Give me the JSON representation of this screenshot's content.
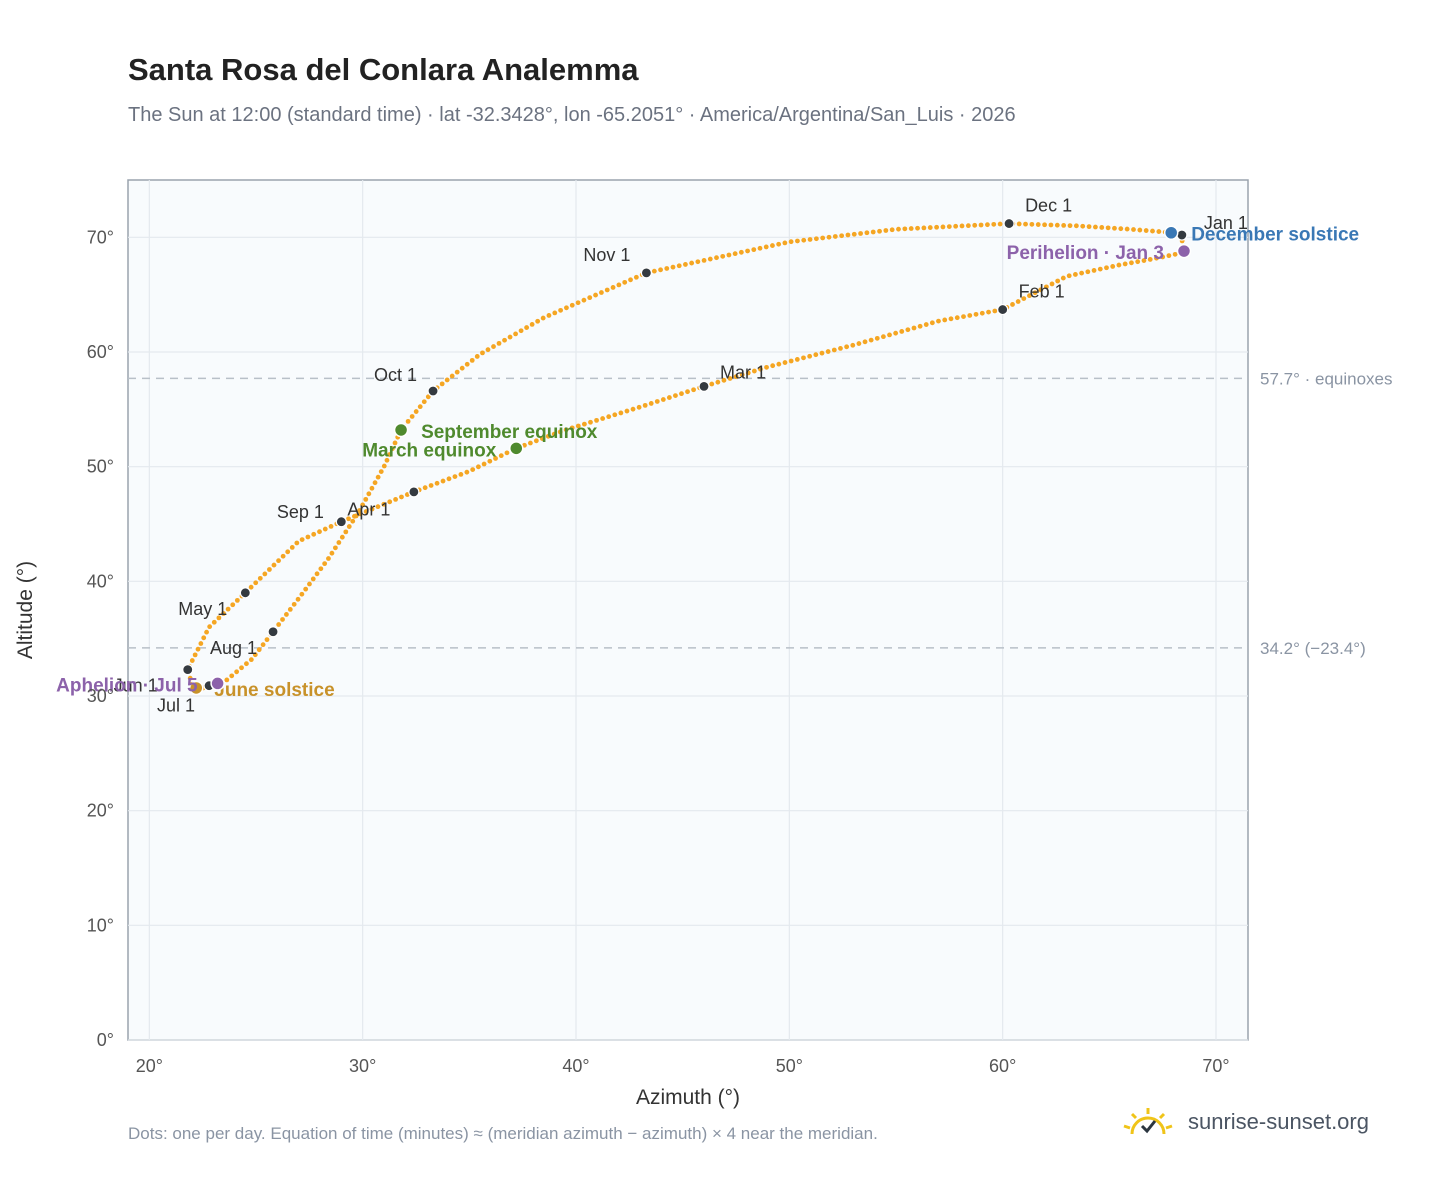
{
  "page": {
    "title": "Santa Rosa del Conlara Analemma",
    "subtitle": "The Sun at 12:00 (standard time) · lat -32.3428°, lon -65.2051° · America/Argentina/San_Luis · 2026",
    "footnote": "Dots: one per day. Equation of time (minutes) ≈ (meridian azimuth − azimuth) × 4 near the meridian.",
    "brand": "sunrise-sunset.org"
  },
  "chart_data": {
    "type": "scatter",
    "title": "Santa Rosa del Conlara Analemma",
    "xlabel": "Azimuth (°)",
    "ylabel": "Altitude (°)",
    "xlim": [
      19,
      71.5
    ],
    "ylim": [
      0,
      75
    ],
    "xticks": [
      20,
      30,
      40,
      50,
      60,
      70
    ],
    "yticks": [
      0,
      10,
      20,
      30,
      40,
      50,
      60,
      70
    ],
    "x_tick_labels": [
      "20°",
      "30°",
      "40°",
      "50°",
      "60°",
      "70°"
    ],
    "y_tick_labels": [
      "0°",
      "10°",
      "20°",
      "30°",
      "40°",
      "50°",
      "60°",
      "70°"
    ],
    "grid": true,
    "curve_color": "#f5a623",
    "month_marker_color": "#343a40",
    "reference_lines": [
      {
        "y": 57.7,
        "label": "57.7° · equinoxes"
      },
      {
        "y": 34.2,
        "label": "34.2° (−23.4°)"
      }
    ],
    "analemma_points": [
      [
        68.5,
        70.2
      ],
      [
        68.4,
        69.8
      ],
      [
        68.5,
        69.0
      ],
      [
        68.3,
        68.6
      ],
      [
        67.0,
        68.1
      ],
      [
        65.5,
        67.6
      ],
      [
        63.0,
        66.6
      ],
      [
        60.0,
        63.7
      ],
      [
        57.0,
        62.7
      ],
      [
        53.0,
        60.6
      ],
      [
        49.0,
        58.7
      ],
      [
        46.0,
        57.0
      ],
      [
        43.0,
        55.2
      ],
      [
        39.5,
        53.2
      ],
      [
        37.2,
        51.6
      ],
      [
        35.0,
        49.6
      ],
      [
        32.4,
        47.8
      ],
      [
        29.0,
        45.2
      ],
      [
        27.0,
        43.5
      ],
      [
        24.5,
        39.0
      ],
      [
        22.8,
        36.0
      ],
      [
        21.8,
        32.3
      ],
      [
        22.0,
        31.0
      ],
      [
        22.2,
        30.7
      ],
      [
        22.8,
        30.7
      ],
      [
        23.5,
        31.2
      ],
      [
        24.8,
        33.2
      ],
      [
        25.8,
        35.6
      ],
      [
        27.0,
        38.5
      ],
      [
        28.4,
        42.0
      ],
      [
        29.8,
        46.0
      ],
      [
        31.0,
        50.0
      ],
      [
        31.8,
        53.2
      ],
      [
        33.3,
        56.6
      ],
      [
        35.5,
        59.8
      ],
      [
        38.5,
        63.0
      ],
      [
        43.3,
        66.9
      ],
      [
        50.0,
        69.6
      ],
      [
        55.0,
        70.7
      ],
      [
        60.3,
        71.2
      ],
      [
        63.5,
        71.0
      ],
      [
        66.0,
        70.7
      ],
      [
        68.0,
        70.4
      ],
      [
        68.5,
        70.2
      ]
    ],
    "month_markers": [
      {
        "label": "Jan 1",
        "x": 68.4,
        "y": 70.2
      },
      {
        "label": "Feb 1",
        "x": 60.0,
        "y": 63.7
      },
      {
        "label": "Mar 1",
        "x": 46.0,
        "y": 57.0
      },
      {
        "label": "Apr 1",
        "x": 29.0,
        "y": 45.2
      },
      {
        "label": "May 1",
        "x": 24.5,
        "y": 39.0
      },
      {
        "label": "Jun 1",
        "x": 21.8,
        "y": 32.3
      },
      {
        "label": "Jul 1",
        "x": 22.8,
        "y": 30.9
      },
      {
        "label": "Aug 1",
        "x": 25.8,
        "y": 35.6
      },
      {
        "label": "Sep 1",
        "x": 32.4,
        "y": 47.8
      },
      {
        "label": "Oct 1",
        "x": 33.3,
        "y": 56.6
      },
      {
        "label": "Nov 1",
        "x": 43.3,
        "y": 66.9
      },
      {
        "label": "Dec 1",
        "x": 60.3,
        "y": 71.2
      }
    ],
    "events": [
      {
        "label": "December solstice",
        "x": 67.9,
        "y": 70.4,
        "color": "#3a78b5"
      },
      {
        "label": "Perihelion · Jan 3",
        "x": 68.5,
        "y": 68.8,
        "color": "#8c62aa"
      },
      {
        "label": "March equinox",
        "x": 37.2,
        "y": 51.6,
        "color": "#4f8a2e"
      },
      {
        "label": "September equinox",
        "x": 31.8,
        "y": 53.2,
        "color": "#4f8a2e"
      },
      {
        "label": "June solstice",
        "x": 22.2,
        "y": 30.7,
        "color": "#c8922a"
      },
      {
        "label": "Aphelion · Jul 5",
        "x": 23.2,
        "y": 31.1,
        "color": "#8c62aa"
      }
    ]
  }
}
